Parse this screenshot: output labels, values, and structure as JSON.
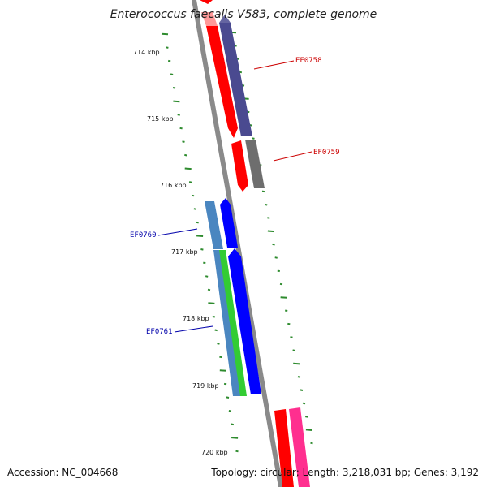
{
  "title": "Enterococcus faecalis V583, complete genome",
  "footer": {
    "accession": "Accession: NC_004668",
    "stats": "Topology: circular; Length: 3,218,031 bp; Genes: 3,192"
  },
  "ticks": [
    {
      "label": "714 kbp"
    },
    {
      "label": "715 kbp"
    },
    {
      "label": "716 kbp"
    },
    {
      "label": "717 kbp"
    },
    {
      "label": "718 kbp"
    },
    {
      "label": "719 kbp"
    },
    {
      "label": "720 kbp"
    }
  ],
  "genes": [
    {
      "label": "EF0758",
      "color": "#cc0000"
    },
    {
      "label": "EF0759",
      "color": "#cc0000"
    },
    {
      "label": "EF0760",
      "color": "#0000aa"
    },
    {
      "label": "EF0761",
      "color": "#0000aa"
    }
  ],
  "colors": {
    "backbone": "#8a8a8a",
    "tick": "#2e8b2e",
    "red": "#ff0000",
    "blue": "#0000ff",
    "purple": "#4a4a90",
    "gray": "#6e6e6e",
    "steelblue": "#4a86c0",
    "green": "#33cc33",
    "pink": "#ff2f8f",
    "pinkpale": "#ff9999"
  }
}
